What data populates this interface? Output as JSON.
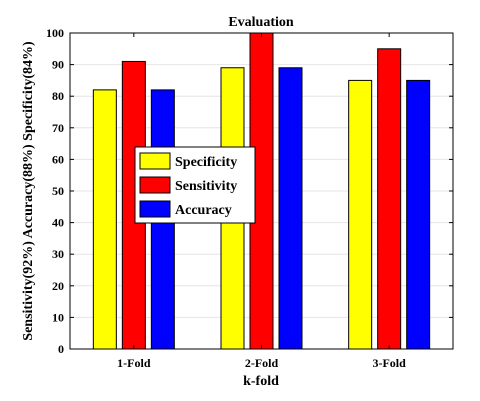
{
  "chart_data": {
    "type": "bar",
    "title": "Evaluation",
    "xlabel": "k-fold",
    "ylabel": "Sensitivity(92%) Accuracy(88%) Specificity(84%)",
    "categories": [
      "1-Fold",
      "2-Fold",
      "3-Fold"
    ],
    "series": [
      {
        "name": "Specificity",
        "color": "#ffff00",
        "values": [
          82,
          89,
          85
        ]
      },
      {
        "name": "Sensitivity",
        "color": "#ff0000",
        "values": [
          91,
          100,
          95
        ]
      },
      {
        "name": "Accuracy",
        "color": "#0000ff",
        "values": [
          82,
          89,
          85
        ]
      }
    ],
    "ylim": [
      0,
      100
    ],
    "yticks": [
      0,
      10,
      20,
      30,
      40,
      50,
      60,
      70,
      80,
      90,
      100
    ],
    "grid": true,
    "legend_position": "center-left"
  }
}
